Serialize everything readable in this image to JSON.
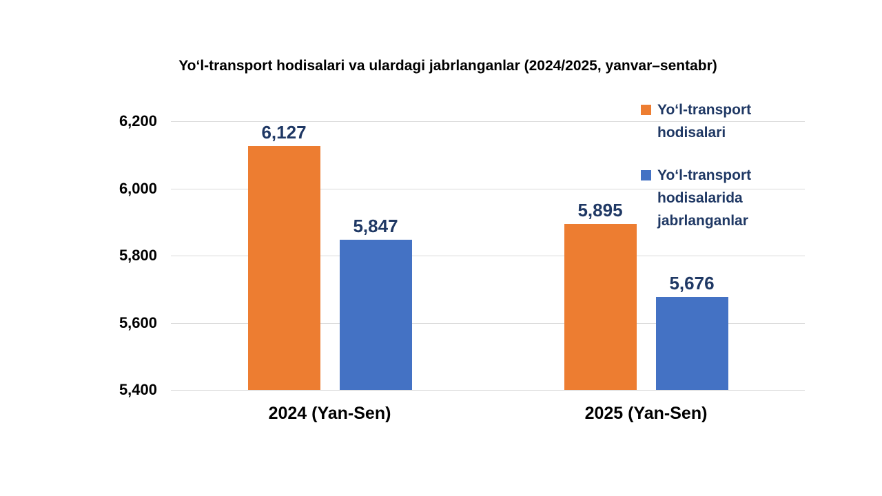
{
  "chart_data": {
    "type": "bar",
    "title": "Yoʻl-transport hodisalari va ulardagi jabrlanganlar (2024/2025, yanvar–sentabr)",
    "categories": [
      "2024 (Yan-Sen)",
      "2025 (Yan-Sen)"
    ],
    "series": [
      {
        "name": "Yoʻl-transport hodisalari",
        "color": "#ED7D31",
        "values": [
          6127,
          5895
        ],
        "data_labels": [
          "6,127",
          "5,895"
        ]
      },
      {
        "name": "Yoʻl-transport hodisalarida jabrlanganlar",
        "color": "#4472C4",
        "values": [
          5847,
          5676
        ],
        "data_labels": [
          "5,847",
          "5,676"
        ]
      }
    ],
    "xlabel": "",
    "ylabel": "",
    "ylim": [
      5400,
      6200
    ],
    "yticks": [
      {
        "value": 6200,
        "label": "6,200"
      },
      {
        "value": 6000,
        "label": "6,000"
      },
      {
        "value": 5800,
        "label": "5,800"
      },
      {
        "value": 5600,
        "label": "5,600"
      },
      {
        "value": 5400,
        "label": "5,400"
      }
    ],
    "grid": true,
    "legend_position": "top-right",
    "colors": {
      "title_text": "#000000",
      "axis_text": "#000000",
      "data_label_text": "#1F3864",
      "legend_text": "#1F3864",
      "gridline": "#D9D9D9",
      "background": "#FFFFFF"
    }
  }
}
